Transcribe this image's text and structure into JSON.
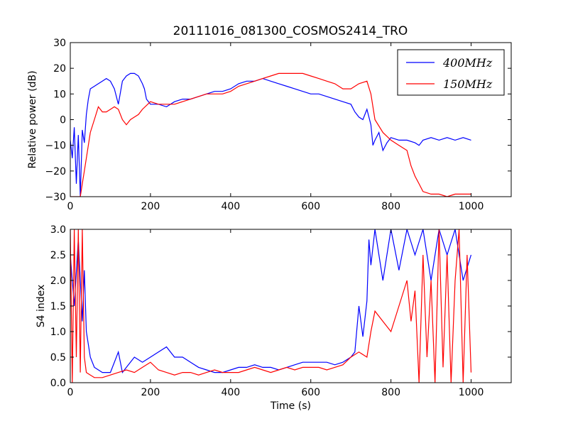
{
  "title": "20111016_081300_COSMOS2414_TRO",
  "colors": {
    "s400": "#0000ff",
    "s150": "#ff0000",
    "axis": "#000000"
  },
  "chart_data": [
    {
      "type": "line",
      "ylabel": "Relative power (dB)",
      "xlabel": "",
      "xlim": [
        0,
        1100
      ],
      "ylim": [
        -30,
        30
      ],
      "xticks": [
        0,
        200,
        400,
        600,
        800,
        1000
      ],
      "yticks": [
        -30,
        -20,
        -10,
        0,
        10,
        20,
        30
      ],
      "xtick_labels": [
        "0",
        "200",
        "400",
        "600",
        "800",
        "1000"
      ],
      "ytick_labels": [
        "−30",
        "−20",
        "−10",
        "0",
        "10",
        "20",
        "30"
      ],
      "legend": {
        "placement": "top-right",
        "entries": [
          "400MHz",
          "150MHz"
        ]
      },
      "series": [
        {
          "name": "400MHz",
          "color": "#0000ff",
          "x": [
            0,
            5,
            10,
            15,
            20,
            25,
            30,
            35,
            40,
            45,
            50,
            60,
            70,
            80,
            90,
            100,
            110,
            120,
            130,
            140,
            150,
            160,
            170,
            180,
            185,
            190,
            195,
            200,
            220,
            240,
            260,
            280,
            300,
            320,
            340,
            360,
            380,
            400,
            420,
            440,
            460,
            480,
            500,
            520,
            540,
            560,
            580,
            600,
            620,
            640,
            660,
            680,
            700,
            710,
            720,
            730,
            740,
            750,
            755,
            760,
            770,
            780,
            790,
            800,
            820,
            840,
            860,
            870,
            880,
            900,
            920,
            940,
            960,
            980,
            1000
          ],
          "y": [
            -8,
            -15,
            -3,
            -25,
            -6,
            -30,
            -4,
            -9,
            2,
            8,
            12,
            13,
            14,
            15,
            16,
            15,
            12,
            6,
            15,
            17,
            18,
            18,
            17,
            14,
            12,
            8,
            7,
            6,
            6,
            5,
            7,
            8,
            8,
            9,
            10,
            11,
            11,
            12,
            14,
            15,
            15,
            16,
            15,
            14,
            13,
            12,
            11,
            10,
            10,
            9,
            8,
            7,
            6,
            3,
            1,
            0,
            4,
            -2,
            -10,
            -8,
            -5,
            -12,
            -9,
            -7,
            -8,
            -8,
            -9,
            -10,
            -8,
            -7,
            -8,
            -7,
            -8,
            -7,
            -8
          ]
        },
        {
          "name": "150MHz",
          "color": "#ff0000",
          "x": [
            0,
            10,
            20,
            25,
            30,
            35,
            40,
            50,
            60,
            70,
            80,
            90,
            100,
            110,
            120,
            130,
            140,
            150,
            160,
            170,
            180,
            200,
            220,
            240,
            260,
            280,
            300,
            320,
            340,
            360,
            380,
            400,
            420,
            440,
            460,
            480,
            500,
            520,
            540,
            560,
            580,
            600,
            620,
            640,
            660,
            680,
            700,
            720,
            740,
            750,
            760,
            780,
            800,
            820,
            840,
            850,
            860,
            870,
            880,
            900,
            920,
            940,
            960,
            980,
            1000
          ],
          "y": [
            -30,
            -30,
            -30,
            -30,
            -25,
            -20,
            -15,
            -5,
            0,
            5,
            3,
            3,
            4,
            5,
            4,
            0,
            -2,
            0,
            1,
            2,
            4,
            7,
            6,
            6,
            6,
            7,
            8,
            9,
            10,
            10,
            10,
            11,
            13,
            14,
            15,
            16,
            17,
            18,
            18,
            18,
            18,
            17,
            16,
            15,
            14,
            12,
            12,
            14,
            15,
            10,
            0,
            -5,
            -8,
            -10,
            -12,
            -18,
            -22,
            -25,
            -28,
            -29,
            -29,
            -30,
            -29,
            -29,
            -29
          ]
        }
      ]
    },
    {
      "type": "line",
      "ylabel": "S4 index",
      "xlabel": "Time (s)",
      "xlim": [
        0,
        1100
      ],
      "ylim": [
        0,
        3
      ],
      "xticks": [
        0,
        200,
        400,
        600,
        800,
        1000
      ],
      "yticks": [
        0,
        0.5,
        1,
        1.5,
        2,
        2.5,
        3
      ],
      "xtick_labels": [
        "0",
        "200",
        "400",
        "600",
        "800",
        "1000"
      ],
      "ytick_labels": [
        "0.0",
        "0.5",
        "1.0",
        "1.5",
        "2.0",
        "2.5",
        "3.0"
      ],
      "series": [
        {
          "name": "400MHz",
          "color": "#0000ff",
          "x": [
            0,
            10,
            20,
            25,
            30,
            35,
            40,
            50,
            60,
            80,
            100,
            120,
            130,
            140,
            160,
            180,
            200,
            220,
            240,
            260,
            280,
            300,
            320,
            340,
            360,
            380,
            400,
            420,
            440,
            460,
            480,
            500,
            520,
            540,
            560,
            580,
            600,
            620,
            640,
            660,
            680,
            700,
            710,
            720,
            730,
            740,
            745,
            750,
            760,
            770,
            780,
            800,
            820,
            840,
            860,
            880,
            900,
            920,
            940,
            960,
            980,
            1000
          ],
          "y": [
            2.5,
            1.5,
            2.8,
            2.0,
            1.2,
            2.2,
            1.0,
            0.5,
            0.3,
            0.2,
            0.2,
            0.6,
            0.2,
            0.3,
            0.5,
            0.4,
            0.5,
            0.6,
            0.7,
            0.5,
            0.5,
            0.4,
            0.3,
            0.25,
            0.2,
            0.2,
            0.25,
            0.3,
            0.3,
            0.35,
            0.3,
            0.3,
            0.25,
            0.3,
            0.35,
            0.4,
            0.4,
            0.4,
            0.4,
            0.35,
            0.4,
            0.5,
            0.6,
            1.5,
            0.9,
            1.6,
            2.8,
            2.3,
            3.0,
            2.5,
            2.0,
            3.0,
            2.2,
            3.0,
            2.5,
            3.0,
            2.0,
            3.0,
            2.5,
            3.0,
            2.0,
            2.5
          ]
        },
        {
          "name": "150MHz",
          "color": "#ff0000",
          "x": [
            0,
            5,
            10,
            15,
            20,
            25,
            30,
            35,
            40,
            50,
            60,
            80,
            100,
            120,
            140,
            160,
            180,
            200,
            220,
            240,
            260,
            280,
            300,
            320,
            340,
            360,
            380,
            400,
            420,
            440,
            460,
            480,
            500,
            520,
            540,
            560,
            580,
            600,
            620,
            640,
            660,
            680,
            700,
            720,
            740,
            750,
            760,
            780,
            800,
            820,
            840,
            850,
            860,
            870,
            880,
            890,
            900,
            910,
            920,
            930,
            940,
            950,
            960,
            970,
            980,
            990,
            1000
          ],
          "y": [
            3.0,
            0.0,
            3.0,
            0.5,
            3.0,
            0.2,
            3.0,
            0.5,
            0.2,
            0.15,
            0.1,
            0.1,
            0.15,
            0.2,
            0.25,
            0.2,
            0.3,
            0.4,
            0.25,
            0.2,
            0.15,
            0.2,
            0.2,
            0.15,
            0.2,
            0.25,
            0.2,
            0.2,
            0.2,
            0.25,
            0.3,
            0.25,
            0.2,
            0.25,
            0.3,
            0.25,
            0.3,
            0.3,
            0.3,
            0.25,
            0.3,
            0.35,
            0.5,
            0.6,
            0.5,
            1.0,
            1.4,
            1.2,
            1.0,
            1.5,
            2.0,
            1.2,
            1.8,
            0.0,
            2.5,
            0.5,
            2.0,
            0.0,
            3.0,
            0.3,
            2.5,
            0.0,
            2.0,
            3.0,
            0.0,
            2.5,
            0.2
          ]
        }
      ]
    }
  ]
}
